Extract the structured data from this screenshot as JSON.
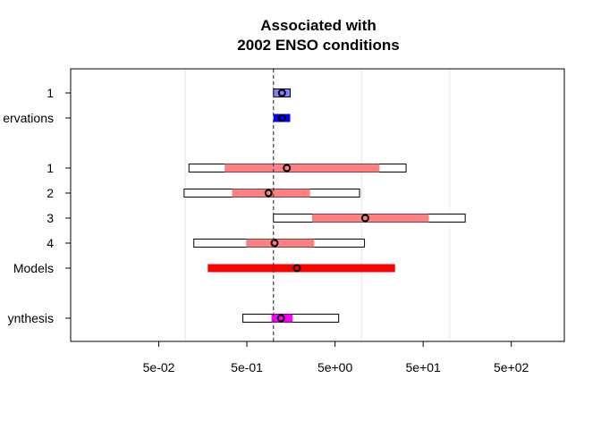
{
  "chart_data": {
    "type": "forest",
    "title_lines": [
      "Associated with",
      "2002 ENSO conditions"
    ],
    "x_scale": "log10",
    "xlim": [
      0.005,
      2000
    ],
    "x_ticks": [
      0.05,
      0.5,
      5,
      50,
      500
    ],
    "x_tick_labels": [
      "5e-02",
      "5e-01",
      "5e+00",
      "5e+01",
      "5e+02"
    ],
    "reference_line": 1,
    "gridlines": [
      0.1,
      1,
      10,
      100
    ],
    "rows": [
      {
        "label": "1",
        "outer": [
          1,
          1.55
        ],
        "inner": null,
        "point": 1.25,
        "color": "#8080ff"
      },
      {
        "label": "ervations",
        "outer": null,
        "inner": [
          1,
          1.55
        ],
        "point": 1.25,
        "color": "#0000ff"
      },
      {
        "label": "1",
        "outer": [
          0.11,
          32
        ],
        "inner": [
          0.28,
          16
        ],
        "point": 1.42,
        "color": "#ff8080"
      },
      {
        "label": "2",
        "outer": [
          0.097,
          9.5
        ],
        "inner": [
          0.34,
          2.6
        ],
        "point": 0.88,
        "color": "#ff8080"
      },
      {
        "label": "3",
        "outer": [
          1,
          150
        ],
        "inner": [
          2.75,
          58
        ],
        "point": 11,
        "color": "#ff8080"
      },
      {
        "label": "4",
        "outer": [
          0.125,
          10.8
        ],
        "inner": [
          0.49,
          2.9
        ],
        "point": 1.03,
        "color": "#ff8080"
      },
      {
        "label": "Models",
        "outer": null,
        "inner": [
          0.18,
          24
        ],
        "point": 1.85,
        "color": "#ff0000"
      },
      {
        "label": "ynthesis",
        "outer": [
          0.45,
          5.5
        ],
        "inner": [
          0.95,
          1.65
        ],
        "point": 1.22,
        "color": "#ff00ff"
      }
    ]
  }
}
